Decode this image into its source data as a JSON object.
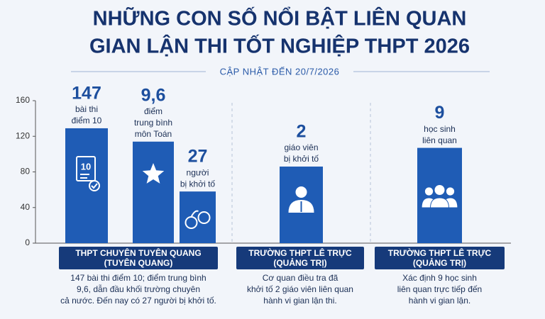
{
  "chart_data": {
    "type": "bar",
    "title_lines": [
      "NHỮNG CON SỐ NỔI BẬT LIÊN QUAN",
      "GIAN LẬN THI TỐT NGHIỆP THPT 2026"
    ],
    "subtitle": "CẬP NHẬT ĐẾN 20/7/2026",
    "values": [
      129,
      114,
      58,
      86,
      107
    ],
    "color": "#1f5cb5",
    "ylim": [
      0,
      160
    ],
    "yticks": [
      0,
      40,
      80,
      120,
      160
    ],
    "annotations": [
      {
        "number": "147",
        "lines": [
          "bài thi",
          "điểm 10"
        ]
      },
      {
        "number": "9,6",
        "lines": [
          "điểm",
          "trung bình",
          "môn Toán"
        ]
      },
      {
        "number": "27",
        "lines": [
          "người",
          "bị khởi tố"
        ]
      },
      {
        "number": "2",
        "lines": [
          "giáo viên",
          "bị khởi tố"
        ]
      },
      {
        "number": "9",
        "lines": [
          "học sinh",
          "liên quan"
        ]
      }
    ],
    "icon_label": "10",
    "groups": [
      {
        "header": [
          "THPT CHUYÊN TUYÊN QUANG",
          "(TUYÊN QUANG)"
        ],
        "description": [
          "147 bài thi điểm 10; điểm trung bình",
          "9,6, dẫn đầu khối trường chuyên",
          "cả nước. Đến nay có 27 người bị khởi tố."
        ]
      },
      {
        "header": [
          "TRƯỜNG THPT LÊ TRỰC",
          "(QUẢNG TRỊ)"
        ],
        "description": [
          "Cơ quan điều tra đã",
          "khởi tố 2 giáo viên liên quan",
          "hành vi gian lận thi."
        ]
      },
      {
        "header": [
          "TRƯỜNG THPT LÊ TRỰC",
          "(QUẢNG TRỊ)"
        ],
        "description": [
          "Xác định 9 học sinh",
          "liên quan trực tiếp đến",
          "hành vi gian lận."
        ]
      }
    ]
  }
}
